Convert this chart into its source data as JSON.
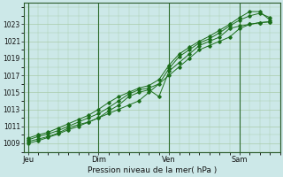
{
  "title": "Pression niveau de la mer( hPa )",
  "bg_color": "#cce8e8",
  "plot_bg_color": "#cce8e8",
  "grid_color": "#aaccaa",
  "line_color": "#1a6e1a",
  "marker_color": "#1a6e1a",
  "ylim": [
    1008.0,
    1025.5
  ],
  "yticks": [
    1009,
    1011,
    1013,
    1015,
    1017,
    1019,
    1021,
    1023
  ],
  "xtick_labels": [
    "Jeu",
    "Dim",
    "Ven",
    "Sam"
  ],
  "xtick_positions": [
    0,
    3.5,
    7,
    10.5
  ],
  "xlim": [
    -0.2,
    12.5
  ],
  "line1_x": [
    0,
    0.5,
    1.0,
    1.5,
    2.0,
    2.5,
    3.0,
    3.5,
    4.0,
    4.5,
    5.0,
    5.5,
    6.0,
    7.0,
    7.5,
    8.0,
    8.5,
    9.0,
    9.5,
    10.0,
    10.5,
    11.0,
    11.5,
    12.0
  ],
  "line1_y": [
    1009.2,
    1009.5,
    1009.8,
    1010.2,
    1010.8,
    1011.2,
    1011.5,
    1012.0,
    1012.5,
    1013.0,
    1013.5,
    1014.0,
    1015.0,
    1017.0,
    1018.0,
    1019.0,
    1020.0,
    1020.5,
    1021.0,
    1021.5,
    1022.5,
    1023.0,
    1023.2,
    1023.3
  ],
  "line2_x": [
    0,
    0.5,
    1.0,
    1.5,
    2.0,
    2.5,
    3.0,
    3.5,
    4.0,
    4.5,
    5.0,
    5.5,
    6.0,
    6.5,
    7.0,
    7.5,
    8.0,
    8.5,
    9.0,
    9.5,
    10.0,
    10.5,
    11.0,
    11.5,
    12.0
  ],
  "line2_y": [
    1009.0,
    1009.3,
    1009.7,
    1010.1,
    1010.6,
    1011.0,
    1011.5,
    1012.0,
    1012.8,
    1013.5,
    1014.5,
    1015.0,
    1015.3,
    1014.5,
    1017.5,
    1018.5,
    1019.5,
    1020.5,
    1021.0,
    1021.5,
    1022.5,
    1022.8,
    1023.0,
    1023.2,
    1023.3
  ],
  "line3_x": [
    0,
    0.5,
    1.0,
    1.5,
    2.0,
    2.5,
    3.0,
    3.5,
    4.0,
    4.5,
    5.0,
    5.5,
    6.0,
    6.5,
    7.0,
    7.5,
    8.0,
    8.5,
    9.0,
    9.5,
    10.0,
    10.5,
    11.0,
    11.5,
    12.0
  ],
  "line3_y": [
    1009.4,
    1009.8,
    1010.1,
    1010.5,
    1011.0,
    1011.5,
    1012.0,
    1012.5,
    1013.2,
    1014.0,
    1014.8,
    1015.3,
    1015.5,
    1016.0,
    1017.8,
    1019.2,
    1020.0,
    1020.8,
    1021.3,
    1022.0,
    1022.8,
    1023.5,
    1024.0,
    1024.3,
    1023.8
  ],
  "line4_x": [
    0,
    0.5,
    1.0,
    1.5,
    2.0,
    2.5,
    3.0,
    3.5,
    4.0,
    4.5,
    5.0,
    5.5,
    6.0,
    6.5,
    7.0,
    7.5,
    8.0,
    8.5,
    9.0,
    9.5,
    10.0,
    10.5,
    11.0,
    11.5,
    12.0
  ],
  "line4_y": [
    1009.6,
    1010.0,
    1010.3,
    1010.8,
    1011.3,
    1011.8,
    1012.3,
    1013.0,
    1013.8,
    1014.5,
    1015.0,
    1015.5,
    1015.8,
    1016.5,
    1018.2,
    1019.5,
    1020.3,
    1021.0,
    1021.6,
    1022.3,
    1023.0,
    1023.8,
    1024.5,
    1024.5,
    1023.5
  ],
  "vline_positions": [
    0,
    3.5,
    7,
    10.5
  ]
}
